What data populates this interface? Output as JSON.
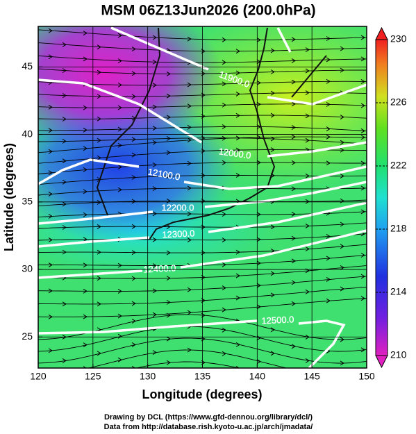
{
  "chart_data": {
    "type": "map",
    "title": "MSM 06Z13Jun2026 (200.0hPa)",
    "x_label": "Longitude (degrees)",
    "y_label": "Latitude (degrees)",
    "xlim": [
      120,
      150
    ],
    "xticks": [
      120,
      125,
      130,
      135,
      140,
      145,
      150
    ],
    "ylim": [
      22.7,
      48
    ],
    "yticks": [
      25,
      30,
      35,
      40,
      45
    ],
    "colorbar": {
      "lim": [
        210,
        230
      ],
      "ticks": [
        210,
        214,
        218,
        222,
        226,
        230
      ]
    },
    "contours": [
      {
        "value": 11900,
        "label": "11900.0"
      },
      {
        "value": 12000,
        "label": "12000.0"
      },
      {
        "value": 12100,
        "label": "12100.0"
      },
      {
        "value": 12200,
        "label": "12200.0"
      },
      {
        "value": 12300,
        "label": "12300.0"
      },
      {
        "value": 12400,
        "label": "12400.0"
      },
      {
        "value": 12500,
        "label": "12500.0"
      }
    ]
  },
  "footer": [
    "Drawing by DCL (https://www.gfd-dennou.org/library/dcl/)",
    "Data from http://database.rish.kyoto-u.ac.jp/arch/jmadata/"
  ]
}
